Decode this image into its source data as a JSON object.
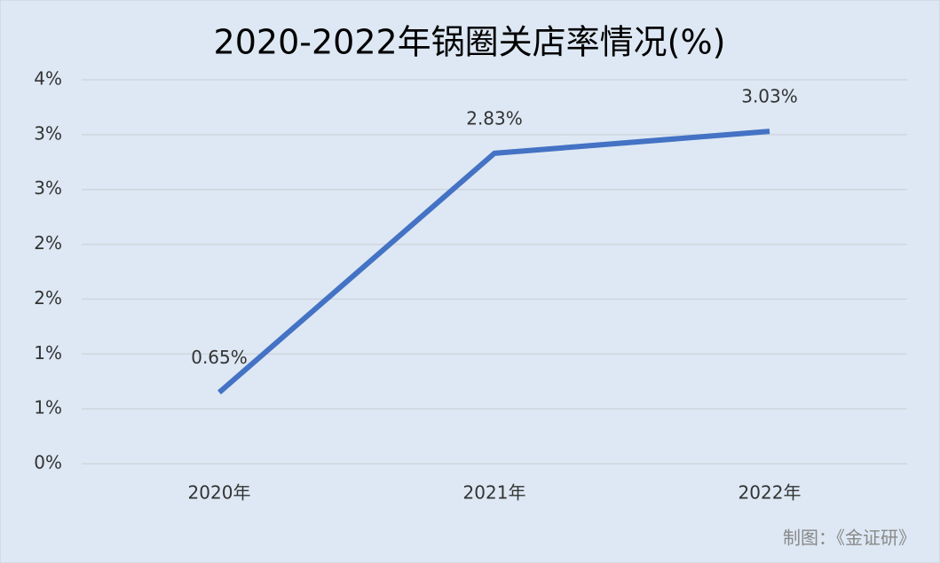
{
  "chart_data": {
    "type": "line",
    "title": "2020-2022年锅圈关店率情况(%)",
    "categories": [
      "2020年",
      "2021年",
      "2022年"
    ],
    "values": [
      0.65,
      2.83,
      3.03
    ],
    "value_labels": [
      "0.65%",
      "2.83%",
      "3.03%"
    ],
    "color": "#4472c4",
    "ylim": [
      0,
      3.5
    ],
    "yticks": [
      {
        "value": 0,
        "label": "0%"
      },
      {
        "value": 0.5,
        "label": "1%"
      },
      {
        "value": 1,
        "label": "1%"
      },
      {
        "value": 1.5,
        "label": "2%"
      },
      {
        "value": 2,
        "label": "2%"
      },
      {
        "value": 2.5,
        "label": "3%"
      },
      {
        "value": 3,
        "label": "3%"
      },
      {
        "value": 3.5,
        "label": "4%"
      }
    ],
    "grid": true,
    "source": "制图：《金证研》"
  }
}
